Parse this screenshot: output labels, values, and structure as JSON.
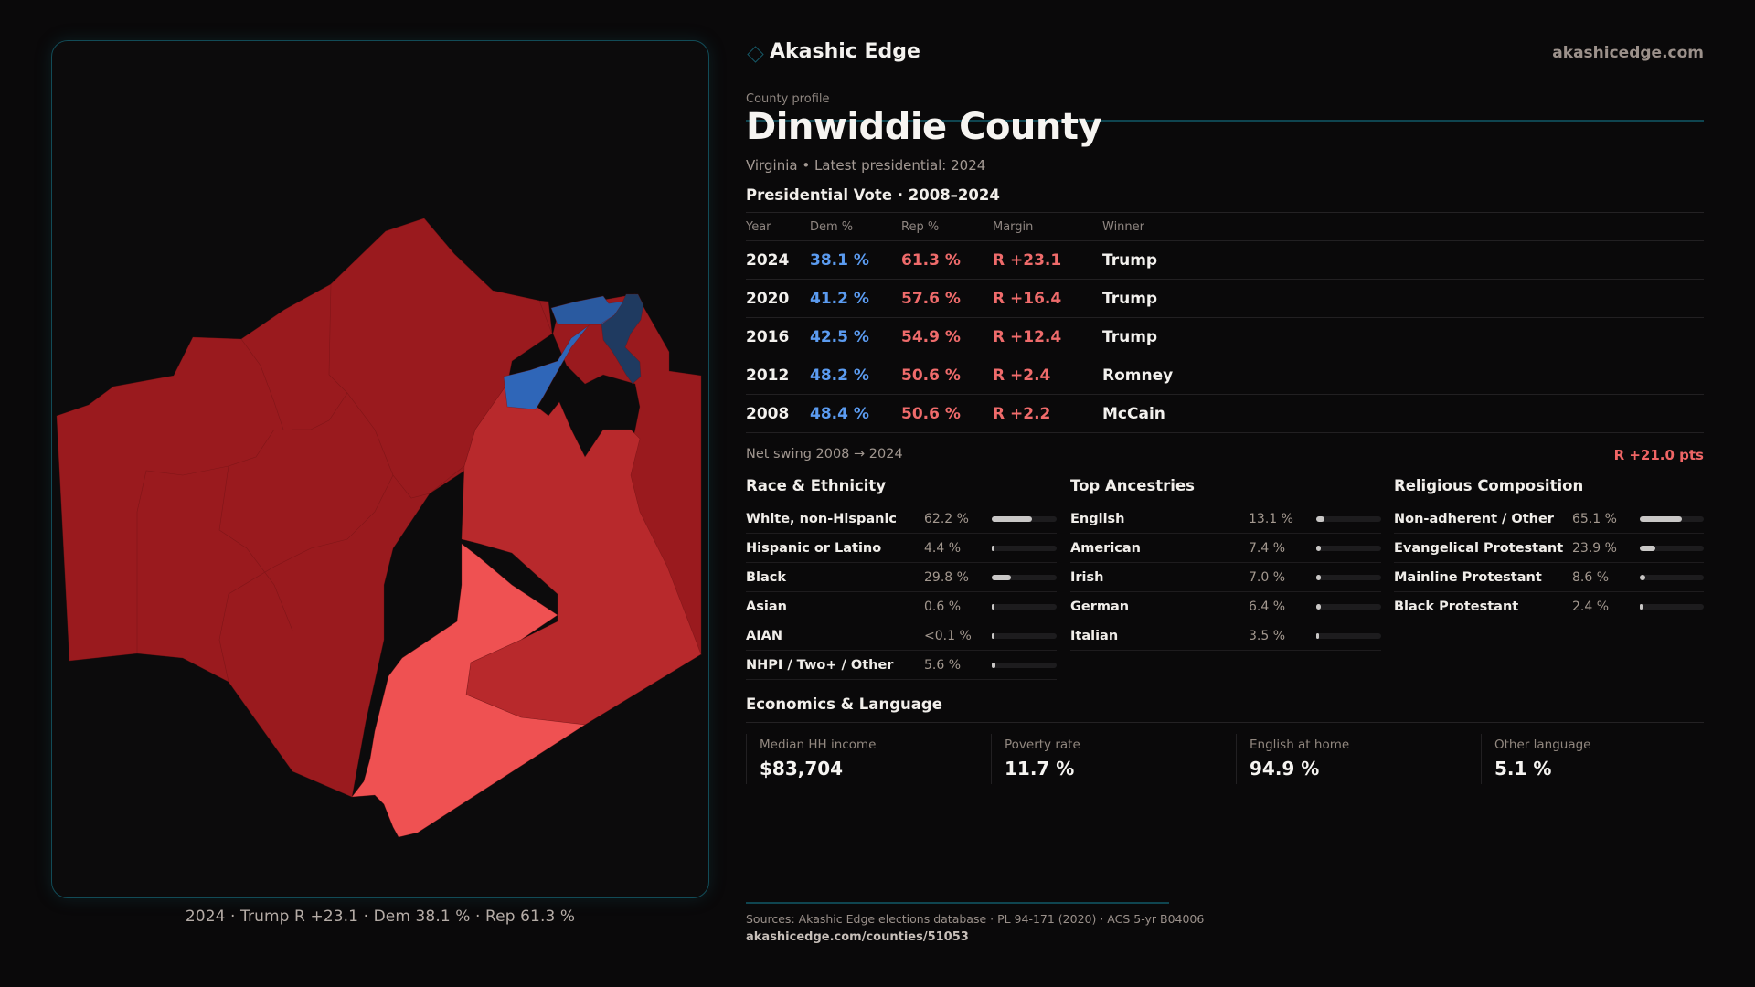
{
  "brand": {
    "name": "Akashic Edge",
    "url": "akashicedge.com",
    "icon": "diamond-outline-icon",
    "accent_color": "#124b57"
  },
  "profile": {
    "eyebrow": "County profile",
    "title": "Dinwiddie County",
    "subtitle": "Virginia • Latest presidential: 2024"
  },
  "vote": {
    "section_title": "Presidential Vote · 2008–2024",
    "columns": [
      "Year",
      "Dem %",
      "Rep %",
      "Margin",
      "Winner"
    ],
    "rows": [
      {
        "year": "2024",
        "dem": "38.1 %",
        "rep": "61.3 %",
        "margin": "R +23.1",
        "winner": "Trump"
      },
      {
        "year": "2020",
        "dem": "41.2 %",
        "rep": "57.6 %",
        "margin": "R +16.4",
        "winner": "Trump"
      },
      {
        "year": "2016",
        "dem": "42.5 %",
        "rep": "54.9 %",
        "margin": "R +12.4",
        "winner": "Trump"
      },
      {
        "year": "2012",
        "dem": "48.2 %",
        "rep": "50.6 %",
        "margin": "R +2.4",
        "winner": "Romney"
      },
      {
        "year": "2008",
        "dem": "48.4 %",
        "rep": "50.6 %",
        "margin": "R +2.2",
        "winner": "McCain"
      }
    ],
    "colors": {
      "dem": "#5b9bf0",
      "rep": "#ef6b6b"
    }
  },
  "swing": {
    "label": "Net swing 2008 → 2024",
    "value": "R +21.0 pts"
  },
  "race": {
    "title": "Race & Ethnicity",
    "rows": [
      {
        "label": "White, non-Hispanic",
        "value": "62.2 %",
        "pct": 62.2
      },
      {
        "label": "Hispanic or Latino",
        "value": "4.4 %",
        "pct": 4.4
      },
      {
        "label": "Black",
        "value": "29.8 %",
        "pct": 29.8
      },
      {
        "label": "Asian",
        "value": "0.6 %",
        "pct": 0.6
      },
      {
        "label": "AIAN",
        "value": "<0.1 %",
        "pct": 0.05
      },
      {
        "label": "NHPI / Two+ / Other",
        "value": "5.6 %",
        "pct": 5.6
      }
    ]
  },
  "ancestry": {
    "title": "Top Ancestries",
    "rows": [
      {
        "label": "English",
        "value": "13.1 %",
        "pct": 13.1
      },
      {
        "label": "American",
        "value": "7.4 %",
        "pct": 7.4
      },
      {
        "label": "Irish",
        "value": "7.0 %",
        "pct": 7.0
      },
      {
        "label": "German",
        "value": "6.4 %",
        "pct": 6.4
      },
      {
        "label": "Italian",
        "value": "3.5 %",
        "pct": 3.5
      }
    ]
  },
  "religion": {
    "title": "Religious Composition",
    "rows": [
      {
        "label": "Non-adherent / Other",
        "value": "65.1 %",
        "pct": 65.1
      },
      {
        "label": "Evangelical Protestant",
        "value": "23.9 %",
        "pct": 23.9
      },
      {
        "label": "Mainline Protestant",
        "value": "8.6 %",
        "pct": 8.6
      },
      {
        "label": "Black Protestant",
        "value": "2.4 %",
        "pct": 2.4
      }
    ]
  },
  "economics": {
    "title": "Economics & Language",
    "cells": [
      {
        "label": "Median HH income",
        "value": "$83,704"
      },
      {
        "label": "Poverty rate",
        "value": "11.7 %"
      },
      {
        "label": "English at home",
        "value": "94.9 %"
      },
      {
        "label": "Other language",
        "value": "5.1 %"
      }
    ]
  },
  "map": {
    "caption": "2024 · Trump R +23.1 · Dem 38.1 % · Rep 61.3 %",
    "legend_colors": {
      "strong_rep": "#9a1a1e",
      "lean_rep": "#b8292c",
      "tilt_rep": "#ef5152",
      "lean_dem": "#2f66b8",
      "dem": "#2a5aa0",
      "strong_dem": "#1f3a60"
    }
  },
  "footer": {
    "sources": "Sources: Akashic Edge elections database · PL 94-171 (2020) · ACS 5-yr B04006",
    "url": "akashicedge.com/counties/51053"
  }
}
